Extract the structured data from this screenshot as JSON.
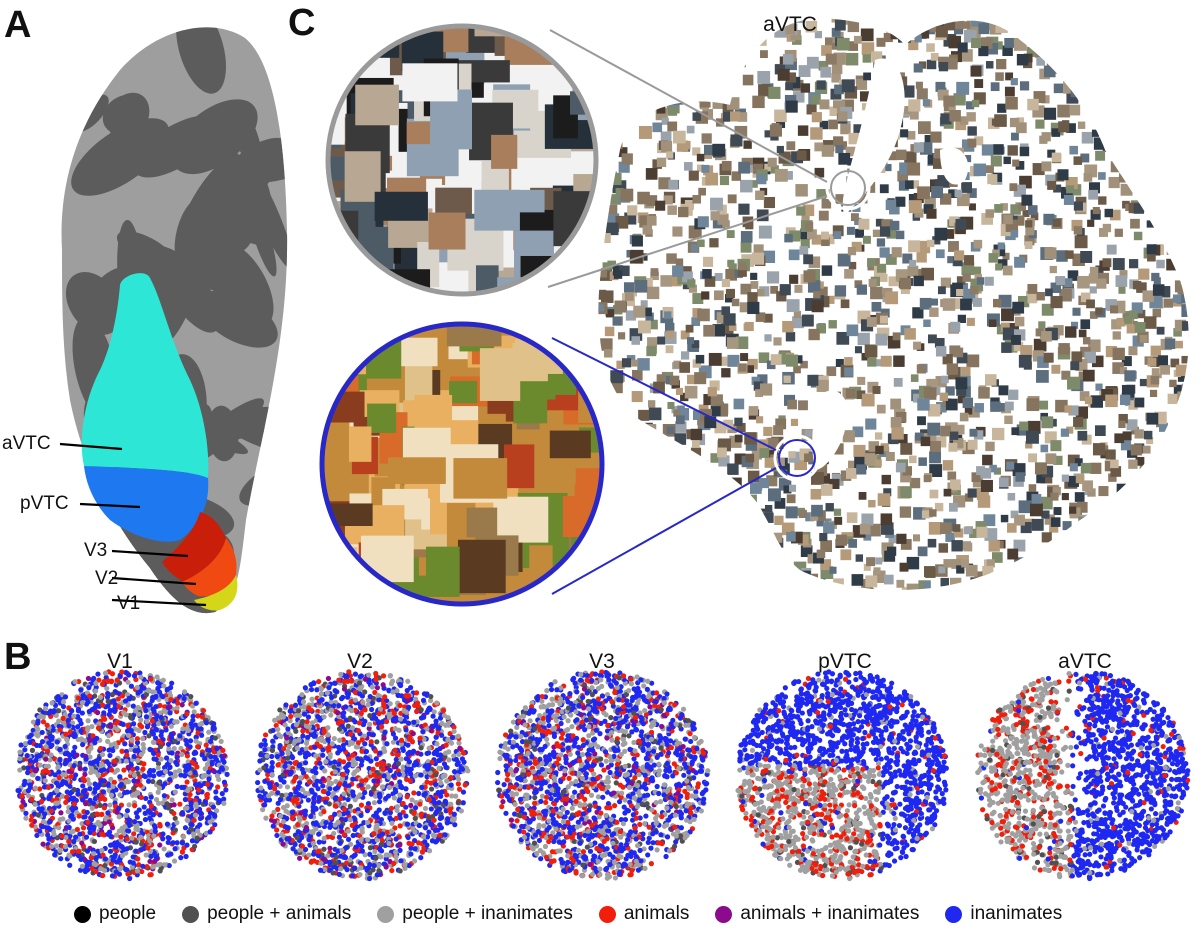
{
  "panels": {
    "a": "A",
    "b": "B",
    "c": "C"
  },
  "brain": {
    "regions": [
      {
        "id": "aVTC",
        "label": "aVTC",
        "color": "#2EE6D6"
      },
      {
        "id": "pVTC",
        "label": "pVTC",
        "color": "#1E78F0"
      },
      {
        "id": "V3",
        "label": "V3",
        "color": "#C81E0A"
      },
      {
        "id": "V2",
        "label": "V2",
        "color": "#F04A12"
      },
      {
        "id": "V1",
        "label": "V1",
        "color": "#D4D61A"
      }
    ],
    "cortex_light": "#9E9E9E",
    "cortex_dark": "#5C5C5C"
  },
  "embedding": {
    "title": "aVTC",
    "zoom_top_border": "#9A9A9A",
    "zoom_bottom_border": "#2828C8"
  },
  "maps": [
    {
      "title": "V1",
      "organization": "mixed"
    },
    {
      "title": "V2",
      "organization": "mixed"
    },
    {
      "title": "V3",
      "organization": "mixed"
    },
    {
      "title": "pVTC",
      "organization": "partial"
    },
    {
      "title": "aVTC",
      "organization": "clustered"
    }
  ],
  "legend": [
    {
      "label": "people",
      "color": "#000000"
    },
    {
      "label": "people + animals",
      "color": "#505050"
    },
    {
      "label": "people + inanimates",
      "color": "#A0A0A0"
    },
    {
      "label": "animals",
      "color": "#F01E0A"
    },
    {
      "label": "animals + inanimates",
      "color": "#8C0A8C"
    },
    {
      "label": "inanimates",
      "color": "#1E28F0"
    }
  ]
}
